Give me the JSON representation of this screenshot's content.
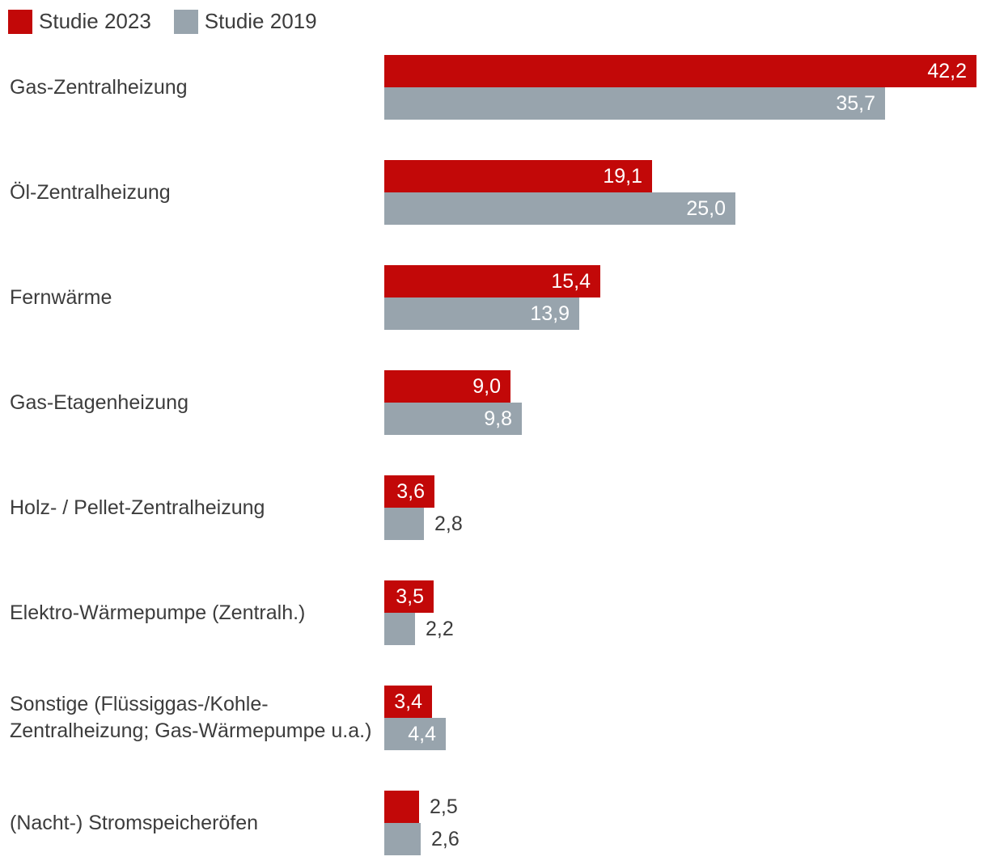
{
  "legend": {
    "items": [
      {
        "label": "Studie 2023",
        "color": "#c20808"
      },
      {
        "label": "Studie 2019",
        "color": "#98a4ad"
      }
    ]
  },
  "chart_data": {
    "type": "bar",
    "orientation": "horizontal",
    "title": "",
    "xlabel": "",
    "ylabel": "",
    "xlim": [
      0,
      42.2
    ],
    "grid": false,
    "axes_visible": false,
    "legend_position": "top-left",
    "value_format": "decimal-comma",
    "categories": [
      "Gas-Zentralheizung",
      "Öl-Zentralheizung",
      "Fernwärme",
      "Gas-Etagenheizung",
      "Holz- / Pellet-Zentralheizung",
      "Elektro-Wärmepumpe (Zentralh.)",
      "Sonstige (Flüssiggas-/Kohle-\nZentralheizung; Gas-Wärmepumpe u.a.)",
      "(Nacht-) Stromspeicheröfen"
    ],
    "series": [
      {
        "name": "Studie 2023",
        "color": "#c20808",
        "values": [
          42.2,
          19.1,
          15.4,
          9.0,
          3.6,
          3.5,
          3.4,
          2.5
        ],
        "labels": [
          "42,2",
          "19,1",
          "15,4",
          "9,0",
          "3,6",
          "3,5",
          "3,4",
          "2,5"
        ]
      },
      {
        "name": "Studie 2019",
        "color": "#98a4ad",
        "values": [
          35.7,
          25.0,
          13.9,
          9.8,
          2.8,
          2.2,
          4.4,
          2.6
        ],
        "labels": [
          "35,7",
          "25,0",
          "13,9",
          "9,8",
          "2,8",
          "2,2",
          "4,4",
          "2,6"
        ]
      }
    ]
  }
}
